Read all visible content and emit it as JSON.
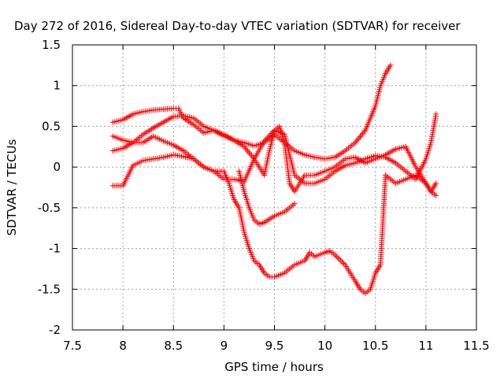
{
  "chart_data": {
    "type": "scatter",
    "title": "Day 272 of 2016, Sidereal Day-to-day VTEC variation (SDTVAR) for receiver",
    "xlabel": "GPS time / hours",
    "ylabel": "SDTVAR / TECUs",
    "xlim": [
      7.5,
      11.5
    ],
    "ylim": [
      -2,
      1.5
    ],
    "xticks": [
      "7.5",
      "8",
      "8.5",
      "9",
      "9.5",
      "10",
      "10.5",
      "11",
      "11.5"
    ],
    "yticks": [
      "1.5",
      "1",
      "0.5",
      "0",
      "-0.5",
      "-1",
      "-1.5",
      "-2"
    ],
    "grid": true,
    "marker": "+",
    "color": "#ff0000",
    "series": [
      {
        "x": [
          7.9,
          8.0,
          8.1,
          8.2,
          8.3,
          8.4,
          8.5,
          8.55,
          8.6,
          8.7,
          8.8,
          8.9,
          9.0,
          9.1,
          9.2,
          9.3,
          9.4,
          9.5,
          9.6,
          9.7,
          9.8,
          9.9,
          10.0,
          10.1,
          10.2,
          10.3,
          10.4,
          10.5,
          10.55,
          10.6,
          10.65
        ],
        "y": [
          0.55,
          0.58,
          0.65,
          0.68,
          0.7,
          0.71,
          0.72,
          0.72,
          0.6,
          0.52,
          0.42,
          0.45,
          0.38,
          0.33,
          0.3,
          0.26,
          0.3,
          0.4,
          0.3,
          0.2,
          0.15,
          0.12,
          0.1,
          0.12,
          0.2,
          0.3,
          0.45,
          0.75,
          1.0,
          1.15,
          1.25
        ]
      },
      {
        "x": [
          7.9,
          8.0,
          8.1,
          8.2,
          8.3,
          8.4,
          8.5,
          8.6,
          8.7,
          8.8,
          8.9,
          9.0,
          9.1,
          9.2,
          9.3,
          9.4,
          9.5,
          9.6,
          9.7,
          9.8,
          9.9,
          10.0,
          10.1,
          10.2,
          10.3,
          10.4,
          10.5,
          10.6,
          10.7,
          10.8,
          10.9,
          11.0,
          11.05,
          11.1
        ],
        "y": [
          0.2,
          0.23,
          0.3,
          0.4,
          0.48,
          0.55,
          0.62,
          0.63,
          0.6,
          0.5,
          0.45,
          0.4,
          0.33,
          0.25,
          0.1,
          0.32,
          0.45,
          0.4,
          -0.1,
          -0.2,
          -0.2,
          -0.15,
          -0.05,
          0.02,
          0.05,
          0.1,
          0.14,
          0.12,
          0.05,
          -0.05,
          -0.15,
          0.1,
          0.3,
          0.65
        ]
      },
      {
        "x": [
          7.9,
          8.0,
          8.1,
          8.2,
          8.3,
          8.4,
          8.5,
          8.6,
          8.7,
          8.8,
          8.9,
          9.0,
          9.1,
          9.2,
          9.3,
          9.4,
          9.45,
          9.5,
          9.55,
          9.6,
          9.65,
          9.7,
          9.8,
          9.9,
          10.0,
          10.1,
          10.2,
          10.3,
          10.4,
          10.5,
          10.6,
          10.7,
          10.8,
          10.9,
          11.0,
          11.05,
          11.1
        ],
        "y": [
          0.38,
          0.33,
          0.3,
          0.3,
          0.38,
          0.32,
          0.27,
          0.2,
          0.1,
          0.0,
          -0.05,
          -0.15,
          -0.15,
          -0.18,
          0.1,
          -0.1,
          0.2,
          0.45,
          0.5,
          0.3,
          -0.2,
          -0.3,
          -0.1,
          -0.1,
          -0.05,
          0.0,
          0.1,
          0.12,
          0.05,
          0.1,
          0.15,
          0.22,
          0.25,
          0.0,
          -0.2,
          -0.3,
          -0.35
        ]
      },
      {
        "x": [
          7.9,
          8.0,
          8.1,
          8.2,
          8.3,
          8.4,
          8.5,
          8.6,
          8.7,
          8.8,
          8.9,
          9.0,
          9.05,
          9.1,
          9.15,
          9.2,
          9.25,
          9.3,
          9.35,
          9.4,
          9.45,
          9.5,
          9.6,
          9.7,
          9.8,
          9.85,
          9.9,
          10.0,
          10.05,
          10.1,
          10.2,
          10.3,
          10.35,
          10.4,
          10.45,
          10.5,
          10.55,
          10.6,
          10.7,
          10.8,
          10.9,
          11.0,
          11.05,
          11.1
        ],
        "y": [
          -0.23,
          -0.23,
          0.02,
          0.08,
          0.1,
          0.12,
          0.15,
          0.13,
          0.1,
          0.0,
          -0.05,
          -0.05,
          -0.2,
          -0.4,
          -0.5,
          -0.8,
          -1.0,
          -1.15,
          -1.2,
          -1.3,
          -1.35,
          -1.35,
          -1.3,
          -1.2,
          -1.15,
          -1.05,
          -1.1,
          -1.05,
          -1.03,
          -1.08,
          -1.2,
          -1.4,
          -1.5,
          -1.55,
          -1.5,
          -1.3,
          -1.2,
          -0.1,
          -0.2,
          -0.15,
          -0.1,
          -0.2,
          -0.3,
          -0.2
        ]
      },
      {
        "x": [
          9.15,
          9.2,
          9.25,
          9.3,
          9.35,
          9.4,
          9.5,
          9.6,
          9.7
        ],
        "y": [
          -0.05,
          -0.3,
          -0.5,
          -0.65,
          -0.7,
          -0.68,
          -0.6,
          -0.55,
          -0.45
        ]
      }
    ]
  }
}
